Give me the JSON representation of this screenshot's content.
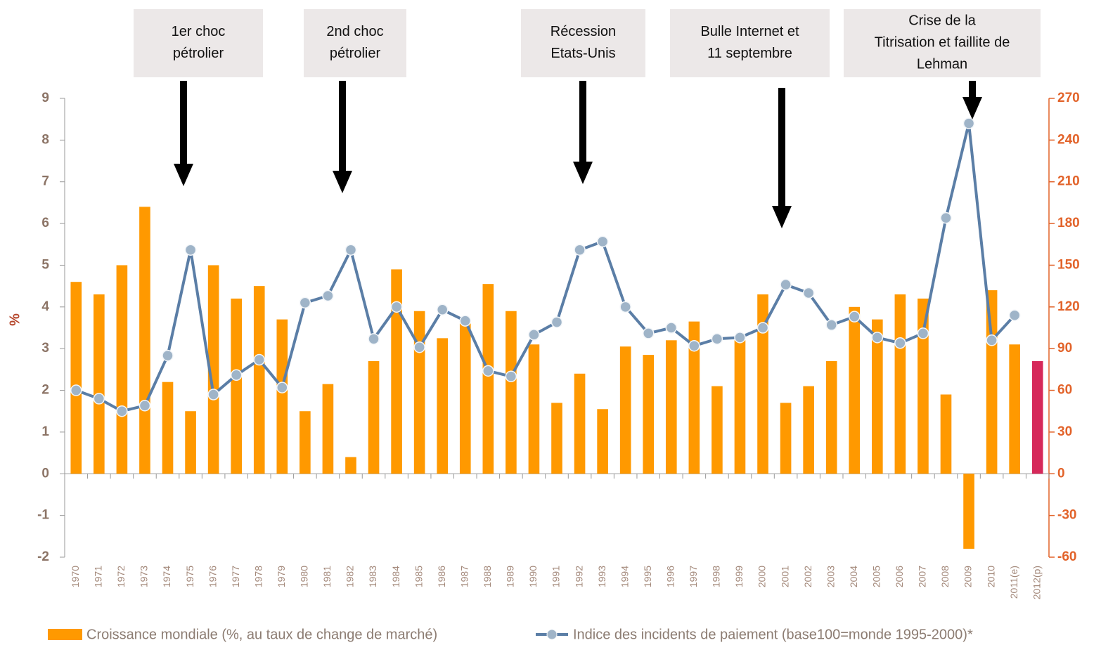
{
  "chart_data": {
    "type": "bar-line",
    "y_label": "%",
    "categories": [
      "1970",
      "1971",
      "1972",
      "1973",
      "1974",
      "1975",
      "1976",
      "1977",
      "1978",
      "1979",
      "1980",
      "1981",
      "1982",
      "1983",
      "1984",
      "1985",
      "1986",
      "1987",
      "1988",
      "1989",
      "1990",
      "1991",
      "1992",
      "1993",
      "1994",
      "1995",
      "1996",
      "1997",
      "1998",
      "1999",
      "2000",
      "2001",
      "2002",
      "2003",
      "2004",
      "2005",
      "2006",
      "2007",
      "2008",
      "2009",
      "2010",
      "2011(e)",
      "2012(p)"
    ],
    "series": [
      {
        "name": "Croissance mondiale (%, au taux de change de marché)",
        "type": "bar",
        "axis": "y",
        "color": "#ff9900",
        "colors": [
          "#ff9900",
          "#ff9900",
          "#ff9900",
          "#ff9900",
          "#ff9900",
          "#ff9900",
          "#ff9900",
          "#ff9900",
          "#ff9900",
          "#ff9900",
          "#ff9900",
          "#ff9900",
          "#ff9900",
          "#ff9900",
          "#ff9900",
          "#ff9900",
          "#ff9900",
          "#ff9900",
          "#ff9900",
          "#ff9900",
          "#ff9900",
          "#ff9900",
          "#ff9900",
          "#ff9900",
          "#ff9900",
          "#ff9900",
          "#ff9900",
          "#ff9900",
          "#ff9900",
          "#ff9900",
          "#ff9900",
          "#ff9900",
          "#ff9900",
          "#ff9900",
          "#ff9900",
          "#ff9900",
          "#ff9900",
          "#ff9900",
          "#ff9900",
          "#ff9900",
          "#ff9900",
          "#ff9900",
          "#d6285a"
        ],
        "values": [
          4.6,
          4.3,
          5.0,
          6.4,
          2.2,
          1.5,
          5.0,
          4.2,
          4.5,
          3.7,
          1.5,
          2.15,
          0.4,
          2.7,
          4.9,
          3.9,
          3.25,
          3.6,
          4.55,
          3.9,
          3.1,
          1.7,
          2.4,
          1.55,
          3.05,
          2.85,
          3.2,
          3.65,
          2.1,
          3.2,
          4.3,
          1.7,
          2.1,
          2.7,
          4.0,
          3.7,
          4.3,
          4.2,
          1.9,
          -1.8,
          4.4,
          3.1,
          2.7
        ]
      },
      {
        "name": "Indice des incidents de paiement (base100=monde 1995-2000)*",
        "type": "line",
        "axis": "y2",
        "color": "#5b7ea6",
        "values": [
          60,
          54,
          45,
          49,
          85,
          161,
          57,
          71,
          82,
          62,
          123,
          128,
          161,
          97,
          120,
          91,
          118,
          110,
          74,
          70,
          100,
          109,
          161,
          167,
          120,
          101,
          105,
          92,
          97,
          98,
          105,
          136,
          130,
          107,
          113,
          98,
          94,
          101,
          184,
          252,
          96,
          114,
          null
        ]
      }
    ],
    "ylim": [
      -2,
      9
    ],
    "yticks": [
      -2,
      -1,
      0,
      1,
      2,
      3,
      4,
      5,
      6,
      7,
      8,
      9
    ],
    "y2lim": [
      -60,
      270
    ],
    "y2ticks": [
      -60,
      -30,
      0,
      30,
      60,
      90,
      120,
      150,
      180,
      210,
      240,
      270
    ],
    "annotations": [
      {
        "lines": [
          "1er choc",
          "pétrolier"
        ]
      },
      {
        "lines": [
          "2nd choc",
          "pétrolier"
        ]
      },
      {
        "lines": [
          "Récession",
          "Etats-Unis"
        ]
      },
      {
        "lines": [
          "Bulle Internet et",
          "11 septembre"
        ]
      },
      {
        "lines": [
          "Crise de la",
          "Titrisation et faillite de",
          "Lehman"
        ]
      }
    ]
  }
}
